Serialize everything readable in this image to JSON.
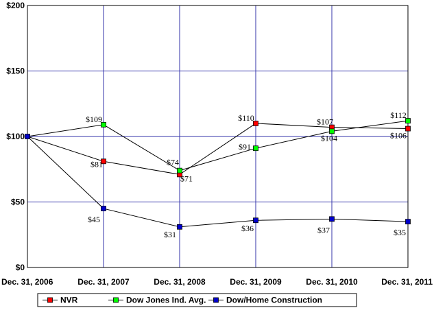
{
  "chart_data": {
    "type": "line",
    "categories": [
      "Dec. 31, 2006",
      "Dec. 31, 2007",
      "Dec. 31, 2008",
      "Dec. 31, 2009",
      "Dec. 31, 2010",
      "Dec. 31, 2011"
    ],
    "ylim": [
      0,
      200
    ],
    "yticks": [
      0,
      50,
      100,
      150,
      200
    ],
    "ytick_labels": [
      "$0",
      "$50",
      "$100",
      "$150",
      "$200"
    ],
    "grid": true,
    "legend_position": "bottom",
    "series": [
      {
        "name": "NVR",
        "color": "#ff0000",
        "values": [
          100,
          81,
          71,
          110,
          107,
          106
        ],
        "labels": [
          "",
          "$81",
          "$71",
          "$110",
          "$107",
          "$106"
        ]
      },
      {
        "name": "Dow Jones Ind. Avg.",
        "color": "#00ff00",
        "values": [
          100,
          109,
          74,
          91,
          104,
          112
        ],
        "labels": [
          "",
          "$109",
          "$74",
          "$91",
          "$104",
          "$112"
        ]
      },
      {
        "name": "Dow/Home Construction",
        "color": "#0000cc",
        "values": [
          100,
          45,
          31,
          36,
          37,
          35
        ],
        "labels": [
          "",
          "$45",
          "$31",
          "$36",
          "$37",
          "$35"
        ]
      }
    ],
    "colors": {
      "grid": "#3333aa",
      "line": "#000000",
      "plot_border": "#000000"
    }
  }
}
